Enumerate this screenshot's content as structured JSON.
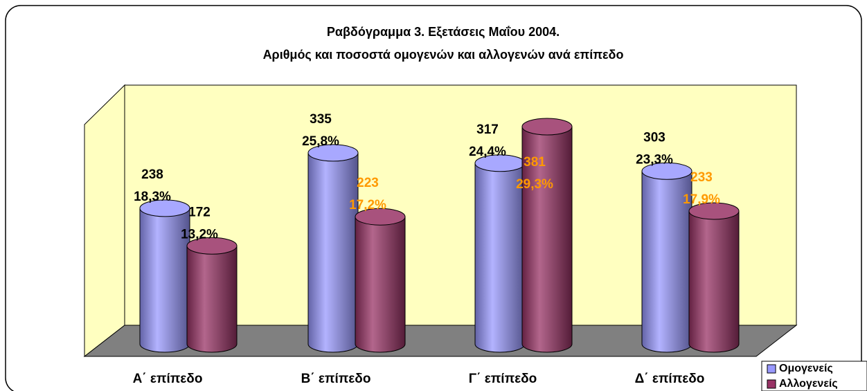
{
  "chart_data": {
    "type": "bar3d-cylinder",
    "title": "Ραβδόγραμμα 3. Εξετάσεις Μαΐου 2004.",
    "subtitle": "Αριθμός και ποσοστά ομογενών και αλλογενών ανά επίπεδο",
    "categories": [
      "Α΄ επίπεδο",
      "Β΄ επίπεδο",
      "Γ΄ επίπεδο",
      "Δ΄ επίπεδο"
    ],
    "series": [
      {
        "name": "Ομογενείς",
        "color": "#9999ff",
        "values": [
          238,
          335,
          317,
          303
        ],
        "shares": [
          18.3,
          25.8,
          24.4,
          23.3
        ],
        "share_labels": [
          "18,3%",
          "25,8%",
          "24,4%",
          "23,3%"
        ],
        "label_colors": [
          "#000000",
          "#000000",
          "#000000",
          "#000000"
        ]
      },
      {
        "name": "Αλλογενείς",
        "color": "#993366",
        "values": [
          172,
          223,
          381,
          233
        ],
        "shares": [
          13.2,
          17.2,
          29.3,
          17.9
        ],
        "share_labels": [
          "13,2%",
          "17,2%",
          "29,3%",
          "17,9%"
        ],
        "label_colors": [
          "#000000",
          "#ff9900",
          "#ff9900",
          "#ff9900"
        ]
      }
    ],
    "legend": "bottom-right",
    "wall_color": "#ffffc0",
    "floor_color": "#808080"
  }
}
